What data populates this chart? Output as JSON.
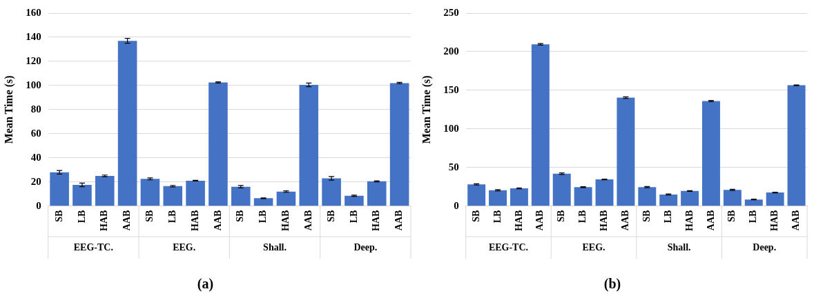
{
  "chart_data": [
    {
      "type": "bar",
      "title": "(a)",
      "ylabel": "Mean Time (s)",
      "categories": [
        "SB",
        "LB",
        "HAB",
        "AAB",
        "SB",
        "LB",
        "HAB",
        "AAB",
        "SB",
        "LB",
        "HAB",
        "AAB",
        "SB",
        "LB",
        "HAB",
        "AAB"
      ],
      "values": [
        28,
        17.5,
        25,
        137,
        22.5,
        16.5,
        21,
        102.5,
        16,
        6.5,
        12,
        100.5,
        23,
        8.5,
        20.5,
        102
      ],
      "errors": [
        1.5,
        1.5,
        0.7,
        2,
        0.8,
        0.6,
        0.3,
        0.5,
        1,
        0.3,
        0.6,
        1.5,
        1.5,
        0.5,
        0.4,
        0.6
      ],
      "color": "#4472c4",
      "ylim": [
        0,
        160
      ],
      "yticks": [
        0,
        20,
        40,
        60,
        80,
        100,
        120,
        140,
        160
      ],
      "grid": "y",
      "annotations": [
        "EEG-TC.",
        "EEG.",
        "Shall.",
        "Deep."
      ]
    },
    {
      "type": "bar",
      "title": "(b)",
      "ylabel": "Mean Time (s)",
      "categories": [
        "SB",
        "LB",
        "HAB",
        "AAB",
        "SB",
        "LB",
        "HAB",
        "AAB",
        "SB",
        "LB",
        "HAB",
        "AAB",
        "SB",
        "LB",
        "HAB",
        "AAB"
      ],
      "values": [
        28,
        20.5,
        23,
        209.5,
        42,
        24.5,
        34.5,
        140.5,
        24.5,
        15,
        19.5,
        136,
        21,
        8.5,
        17.5,
        156.5
      ],
      "errors": [
        0.8,
        0.8,
        0.6,
        1,
        1,
        0.6,
        0.5,
        1,
        0.8,
        0.6,
        0.5,
        0.8,
        0.8,
        0.5,
        0.4,
        0.5
      ],
      "color": "#4472c4",
      "ylim": [
        0,
        250
      ],
      "yticks": [
        0,
        50,
        100,
        150,
        200,
        250
      ],
      "grid": "y",
      "annotations": [
        "EEG-TC.",
        "EEG.",
        "Shall.",
        "Deep."
      ]
    }
  ]
}
